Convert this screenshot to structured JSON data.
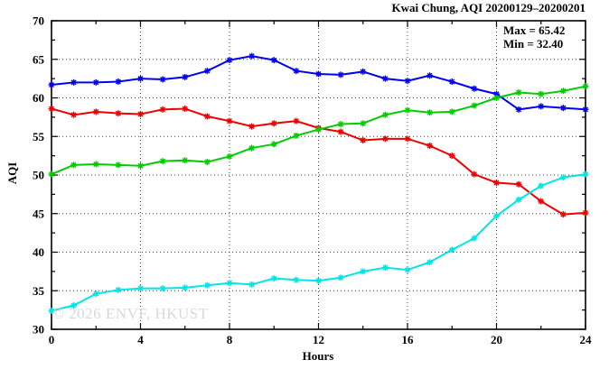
{
  "chart_data": {
    "type": "line",
    "title": "Kwai Chung, AQI 20200129–20200201",
    "xlabel": "Hours",
    "ylabel": "AQI",
    "xlim": [
      0,
      24
    ],
    "ylim": [
      30,
      70
    ],
    "x_major_ticks": [
      0,
      4,
      8,
      12,
      16,
      20,
      24
    ],
    "x_minor_tick_step": 2,
    "y_major_ticks": [
      30,
      35,
      40,
      45,
      50,
      55,
      60,
      65,
      70
    ],
    "y_minor_tick_step": 2.5,
    "grid": {
      "style": "dotted",
      "x_lines": [
        4,
        8,
        12,
        16,
        20
      ],
      "y_lines": [
        35,
        40,
        45,
        50,
        55,
        60,
        65
      ]
    },
    "legend_position": "none",
    "marker": "asterisk",
    "hours": [
      0,
      1,
      2,
      3,
      4,
      5,
      6,
      7,
      8,
      9,
      10,
      11,
      12,
      13,
      14,
      15,
      16,
      17,
      18,
      19,
      20,
      21,
      22,
      23,
      24
    ],
    "series": [
      {
        "name": "series-blue",
        "color": "#0000ee",
        "values": [
          61.7,
          62.0,
          62.0,
          62.1,
          62.5,
          62.4,
          62.7,
          63.5,
          64.9,
          65.42,
          64.9,
          63.5,
          63.1,
          63.0,
          63.4,
          62.5,
          62.2,
          62.9,
          62.1,
          61.2,
          60.5,
          58.5,
          58.9,
          58.7,
          58.5
        ]
      },
      {
        "name": "series-red",
        "color": "#ee0000",
        "values": [
          58.6,
          57.8,
          58.2,
          58.0,
          57.9,
          58.5,
          58.6,
          57.6,
          57.0,
          56.3,
          56.7,
          57.0,
          56.1,
          55.6,
          54.5,
          54.7,
          54.7,
          53.8,
          52.5,
          50.1,
          49.0,
          48.8,
          46.6,
          44.9,
          45.1
        ]
      },
      {
        "name": "series-green",
        "color": "#00cc00",
        "values": [
          50.1,
          51.3,
          51.4,
          51.3,
          51.2,
          51.8,
          51.9,
          51.7,
          52.4,
          53.5,
          54.0,
          55.1,
          55.9,
          56.6,
          56.7,
          57.8,
          58.4,
          58.1,
          58.2,
          59.0,
          60.0,
          60.7,
          60.5,
          60.9,
          61.5
        ]
      },
      {
        "name": "series-cyan",
        "color": "#00e5e5",
        "values": [
          32.4,
          33.1,
          34.6,
          35.1,
          35.3,
          35.3,
          35.4,
          35.7,
          36.0,
          35.8,
          36.6,
          36.4,
          36.3,
          36.7,
          37.5,
          38.0,
          37.7,
          38.7,
          40.3,
          41.8,
          44.7,
          46.8,
          48.6,
          49.7,
          50.1
        ]
      }
    ],
    "annotations": {
      "max_label": "Max = 65.42",
      "min_label": "Min = 32.40"
    },
    "watermark": "© 2026 ENVF, HKUST",
    "colors": {
      "axis": "#000000",
      "grid": "#3c3c3c",
      "background": "#ffffff",
      "watermark_text": "#d9d9d9"
    }
  }
}
